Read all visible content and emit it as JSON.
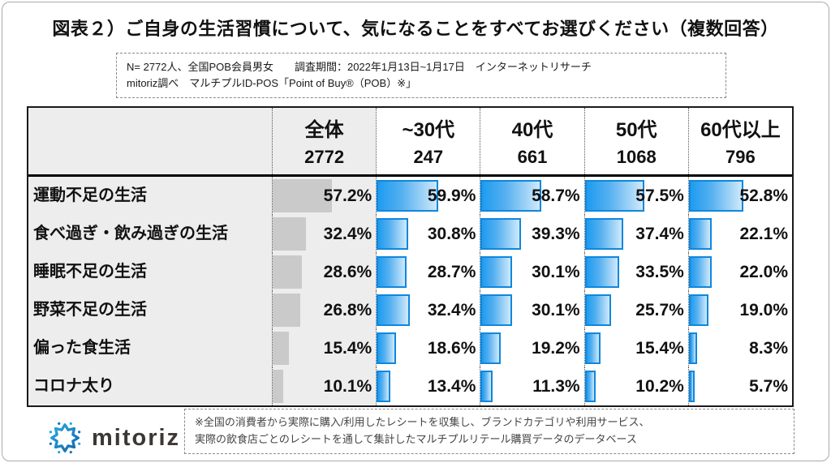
{
  "page": {
    "title": "図表２）ご自身の生活習慣について、気になることをすべてお選びください（複数回答）",
    "survey_note_line1": "N= 2772人、全国POB会員男女　　調査期間：2022年1月13日~1月17日　インターネットリサーチ",
    "survey_note_line2": "mitoriz調べ　マルチプルID-POS「Point of Buy®（POB）※」",
    "footer_note_line1": "※全国の消費者から実際に購入/利用したレシートを収集し、ブランドカテゴリや利用サービス、",
    "footer_note_line2": "実際の飲食店ごとのレシートを通して集計したマルチプルリテール購買データのデータベース",
    "logo_text": "mitoriz"
  },
  "table": {
    "columns": [
      {
        "label": "全体",
        "count": "2772"
      },
      {
        "label": "~30代",
        "count": "247"
      },
      {
        "label": "40代",
        "count": "661"
      },
      {
        "label": "50代",
        "count": "1068"
      },
      {
        "label": "60代以上",
        "count": "796"
      }
    ],
    "rows": [
      {
        "label": "運動不足の生活",
        "cells": [
          "57.2%",
          "59.9%",
          "58.7%",
          "57.5%",
          "52.8%"
        ]
      },
      {
        "label": "食べ過ぎ・飲み過ぎの生活",
        "cells": [
          "32.4%",
          "30.8%",
          "39.3%",
          "37.4%",
          "22.1%"
        ]
      },
      {
        "label": "睡眠不足の生活",
        "cells": [
          "28.6%",
          "28.7%",
          "30.1%",
          "33.5%",
          "22.0%"
        ]
      },
      {
        "label": "野菜不足の生活",
        "cells": [
          "26.8%",
          "32.4%",
          "30.1%",
          "25.7%",
          "19.0%"
        ]
      },
      {
        "label": "偏った食生活",
        "cells": [
          "15.4%",
          "18.6%",
          "19.2%",
          "15.4%",
          "8.3%"
        ]
      },
      {
        "label": "コロナ太り",
        "cells": [
          "10.1%",
          "13.4%",
          "11.3%",
          "10.2%",
          "5.7%"
        ]
      }
    ]
  },
  "chart_data": {
    "type": "bar",
    "orientation": "horizontal",
    "title": "図表２）ご自身の生活習慣について、気になることをすべてお選びください（複数回答）",
    "unit": "%",
    "xlim": [
      0,
      100
    ],
    "grid": false,
    "categories": [
      "運動不足の生活",
      "食べ過ぎ・飲み過ぎの生活",
      "睡眠不足の生活",
      "野菜不足の生活",
      "偏った食生活",
      "コロナ太り"
    ],
    "series": [
      {
        "name": "全体",
        "n": 2772,
        "values": [
          57.2,
          32.4,
          28.6,
          26.8,
          15.4,
          10.1
        ]
      },
      {
        "name": "~30代",
        "n": 247,
        "values": [
          59.9,
          30.8,
          28.7,
          32.4,
          18.6,
          13.4
        ]
      },
      {
        "name": "40代",
        "n": 661,
        "values": [
          58.7,
          39.3,
          30.1,
          30.1,
          19.2,
          11.3
        ]
      },
      {
        "name": "50代",
        "n": 1068,
        "values": [
          57.5,
          37.4,
          33.5,
          25.7,
          15.4,
          10.2
        ]
      },
      {
        "name": "60代以上",
        "n": 796,
        "values": [
          52.8,
          22.1,
          22.0,
          19.0,
          8.3,
          5.7
        ]
      }
    ]
  },
  "colors": {
    "bar_blue": "#1e9bf0",
    "bar_blue_border": "#0f87de",
    "bar_blue_fade": "#cfe9fb",
    "bar_gray": "#cacaca",
    "panel_gray": "#ededed"
  }
}
